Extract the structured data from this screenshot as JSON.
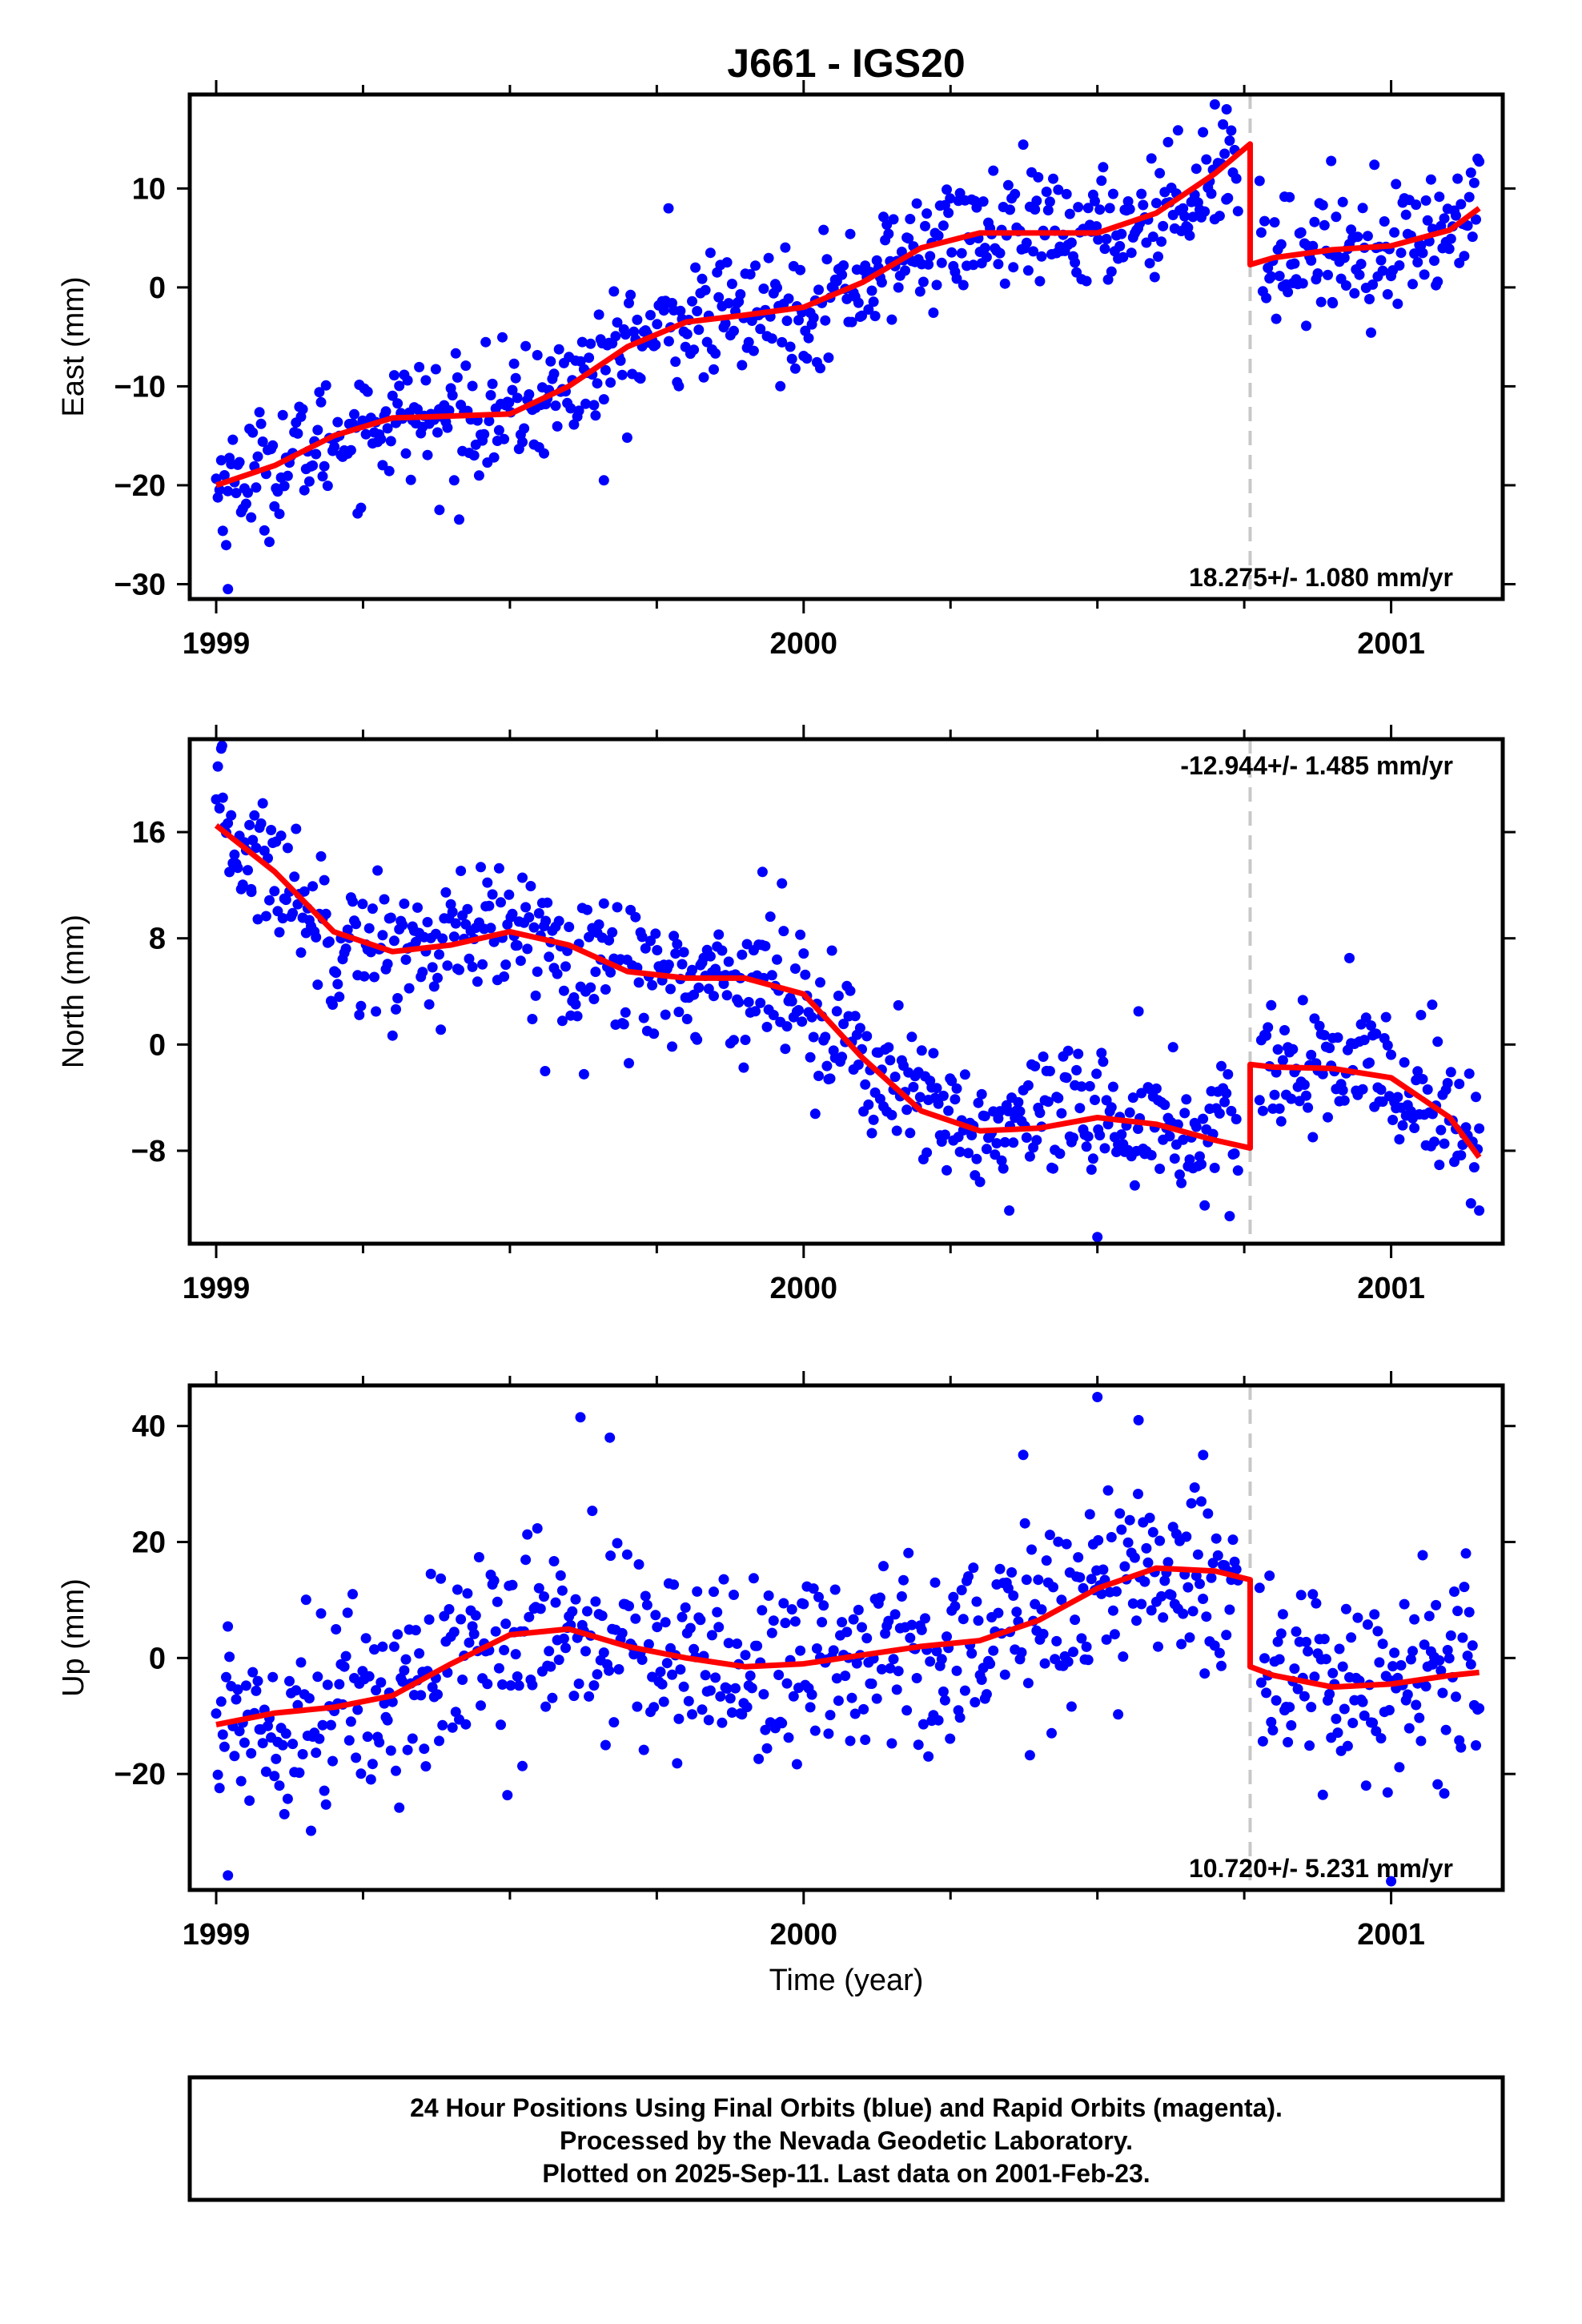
{
  "title": "J661 - IGS20",
  "xlabel": "Time (year)",
  "footer": {
    "line1": "24 Hour Positions Using Final Orbits (blue) and Rapid Orbits (magenta).",
    "line2": "Processed by the Nevada Geodetic Laboratory.",
    "line3": "Plotted on 2025-Sep-11. Last data on 2001-Feb-23."
  },
  "colors": {
    "points": "#0000ff",
    "model": "#ff0000",
    "break_line": "#c8c8c8",
    "frame": "#000000"
  },
  "chart_data": [
    {
      "type": "scatter",
      "panel": "east",
      "ylabel": "East (mm)",
      "rate_text": "18.275+/- 1.080 mm/yr",
      "rate_position": "bottom-right",
      "xlim": [
        1998.955,
        2001.19
      ],
      "ylim": [
        -31.5,
        19.5
      ],
      "x_ticks": [
        1999,
        2000,
        2001
      ],
      "y_ticks": [
        -30,
        -20,
        -10,
        0,
        10
      ],
      "break_epoch": 2000.76,
      "model": {
        "name": "fit",
        "x": [
          1999.0,
          1999.1,
          1999.2,
          1999.3,
          1999.4,
          1999.5,
          1999.6,
          1999.7,
          1999.8,
          1999.9,
          2000.0,
          2000.1,
          2000.2,
          2000.3,
          2000.4,
          2000.5,
          2000.6,
          2000.7,
          2000.76,
          2000.76,
          2000.8,
          2000.9,
          2001.0,
          2001.1,
          2001.15
        ],
        "y": [
          -20,
          -18,
          -15,
          -13.2,
          -13,
          -12.8,
          -10,
          -6,
          -3.5,
          -2.8,
          -2,
          0.5,
          4,
          5.5,
          5.5,
          5.5,
          7.5,
          11.5,
          14.5,
          2.3,
          3,
          3.8,
          4.2,
          5.8,
          8
        ]
      },
      "points": {
        "count": 760,
        "noise_mm": 3.0,
        "outliers": [
          [
            1999.02,
            -30.5
          ],
          [
            1999.38,
            -22.5
          ],
          [
            1999.66,
            -19.5
          ],
          [
            1999.77,
            8
          ],
          [
            2000.7,
            18.5
          ],
          [
            2000.72,
            18
          ],
          [
            2000.9,
            -1.5
          ]
        ]
      }
    },
    {
      "type": "scatter",
      "panel": "north",
      "ylabel": "North (mm)",
      "rate_text": "-12.944+/- 1.485 mm/yr",
      "rate_position": "top-right",
      "xlim": [
        1998.955,
        2001.19
      ],
      "ylim": [
        -15,
        23
      ],
      "x_ticks": [
        1999,
        2000,
        2001
      ],
      "y_ticks": [
        -8,
        0,
        8,
        16
      ],
      "break_epoch": 2000.76,
      "model": {
        "name": "fit",
        "x": [
          1999.0,
          1999.1,
          1999.2,
          1999.3,
          1999.4,
          1999.5,
          1999.6,
          1999.7,
          1999.8,
          1999.9,
          2000.0,
          2000.1,
          2000.2,
          2000.3,
          2000.4,
          2000.5,
          2000.6,
          2000.7,
          2000.76,
          2000.76,
          2000.8,
          2000.9,
          2001.0,
          2001.1,
          2001.15
        ],
        "y": [
          16.5,
          13,
          8.5,
          7,
          7.5,
          8.5,
          7.5,
          5.5,
          5,
          5,
          3.8,
          -1,
          -5,
          -6.5,
          -6.3,
          -5.5,
          -6,
          -7.2,
          -7.8,
          -1.5,
          -1.7,
          -1.8,
          -2.5,
          -5.5,
          -8.5
        ]
      },
      "points": {
        "count": 760,
        "noise_mm": 2.6,
        "outliers": [
          [
            1999.01,
            22.5
          ],
          [
            1999.06,
            11.5
          ],
          [
            1999.56,
            -2
          ],
          [
            1999.93,
            13
          ],
          [
            2000.35,
            -12.5
          ],
          [
            2000.5,
            -14.5
          ],
          [
            2000.57,
            2.5
          ],
          [
            2001.07,
            3
          ],
          [
            2001.15,
            -12.5
          ]
        ]
      }
    },
    {
      "type": "scatter",
      "panel": "up",
      "ylabel": "Up (mm)",
      "rate_text": "10.720+/- 5.231 mm/yr",
      "rate_position": "bottom-right",
      "xlim": [
        1998.955,
        2001.19
      ],
      "ylim": [
        -40,
        47
      ],
      "x_ticks": [
        1999,
        2000,
        2001
      ],
      "y_ticks": [
        -20,
        0,
        20,
        40
      ],
      "break_epoch": 2000.76,
      "model": {
        "name": "fit",
        "x": [
          1999.0,
          1999.1,
          1999.2,
          1999.3,
          1999.4,
          1999.5,
          1999.6,
          1999.7,
          1999.8,
          1999.9,
          2000.0,
          2000.1,
          2000.2,
          2000.3,
          2000.4,
          2000.5,
          2000.6,
          2000.7,
          2000.76,
          2000.76,
          2000.8,
          2000.9,
          2001.0,
          2001.1,
          2001.15
        ],
        "y": [
          -11.5,
          -9.5,
          -8.5,
          -6.5,
          -1,
          4,
          5,
          2,
          0,
          -1.5,
          -1,
          0.5,
          2,
          3,
          6.5,
          12,
          15.5,
          15,
          13.5,
          -1.5,
          -3,
          -5,
          -4.5,
          -3,
          -2.5
        ]
      },
      "points": {
        "count": 760,
        "noise_mm": 8.5,
        "outliers": [
          [
            1999.02,
            -37.5
          ],
          [
            1999.62,
            41.5
          ],
          [
            1999.67,
            38
          ],
          [
            2000.5,
            45
          ],
          [
            2000.57,
            41
          ],
          [
            2000.68,
            35
          ],
          [
            2001.0,
            -38.5
          ]
        ]
      }
    }
  ]
}
